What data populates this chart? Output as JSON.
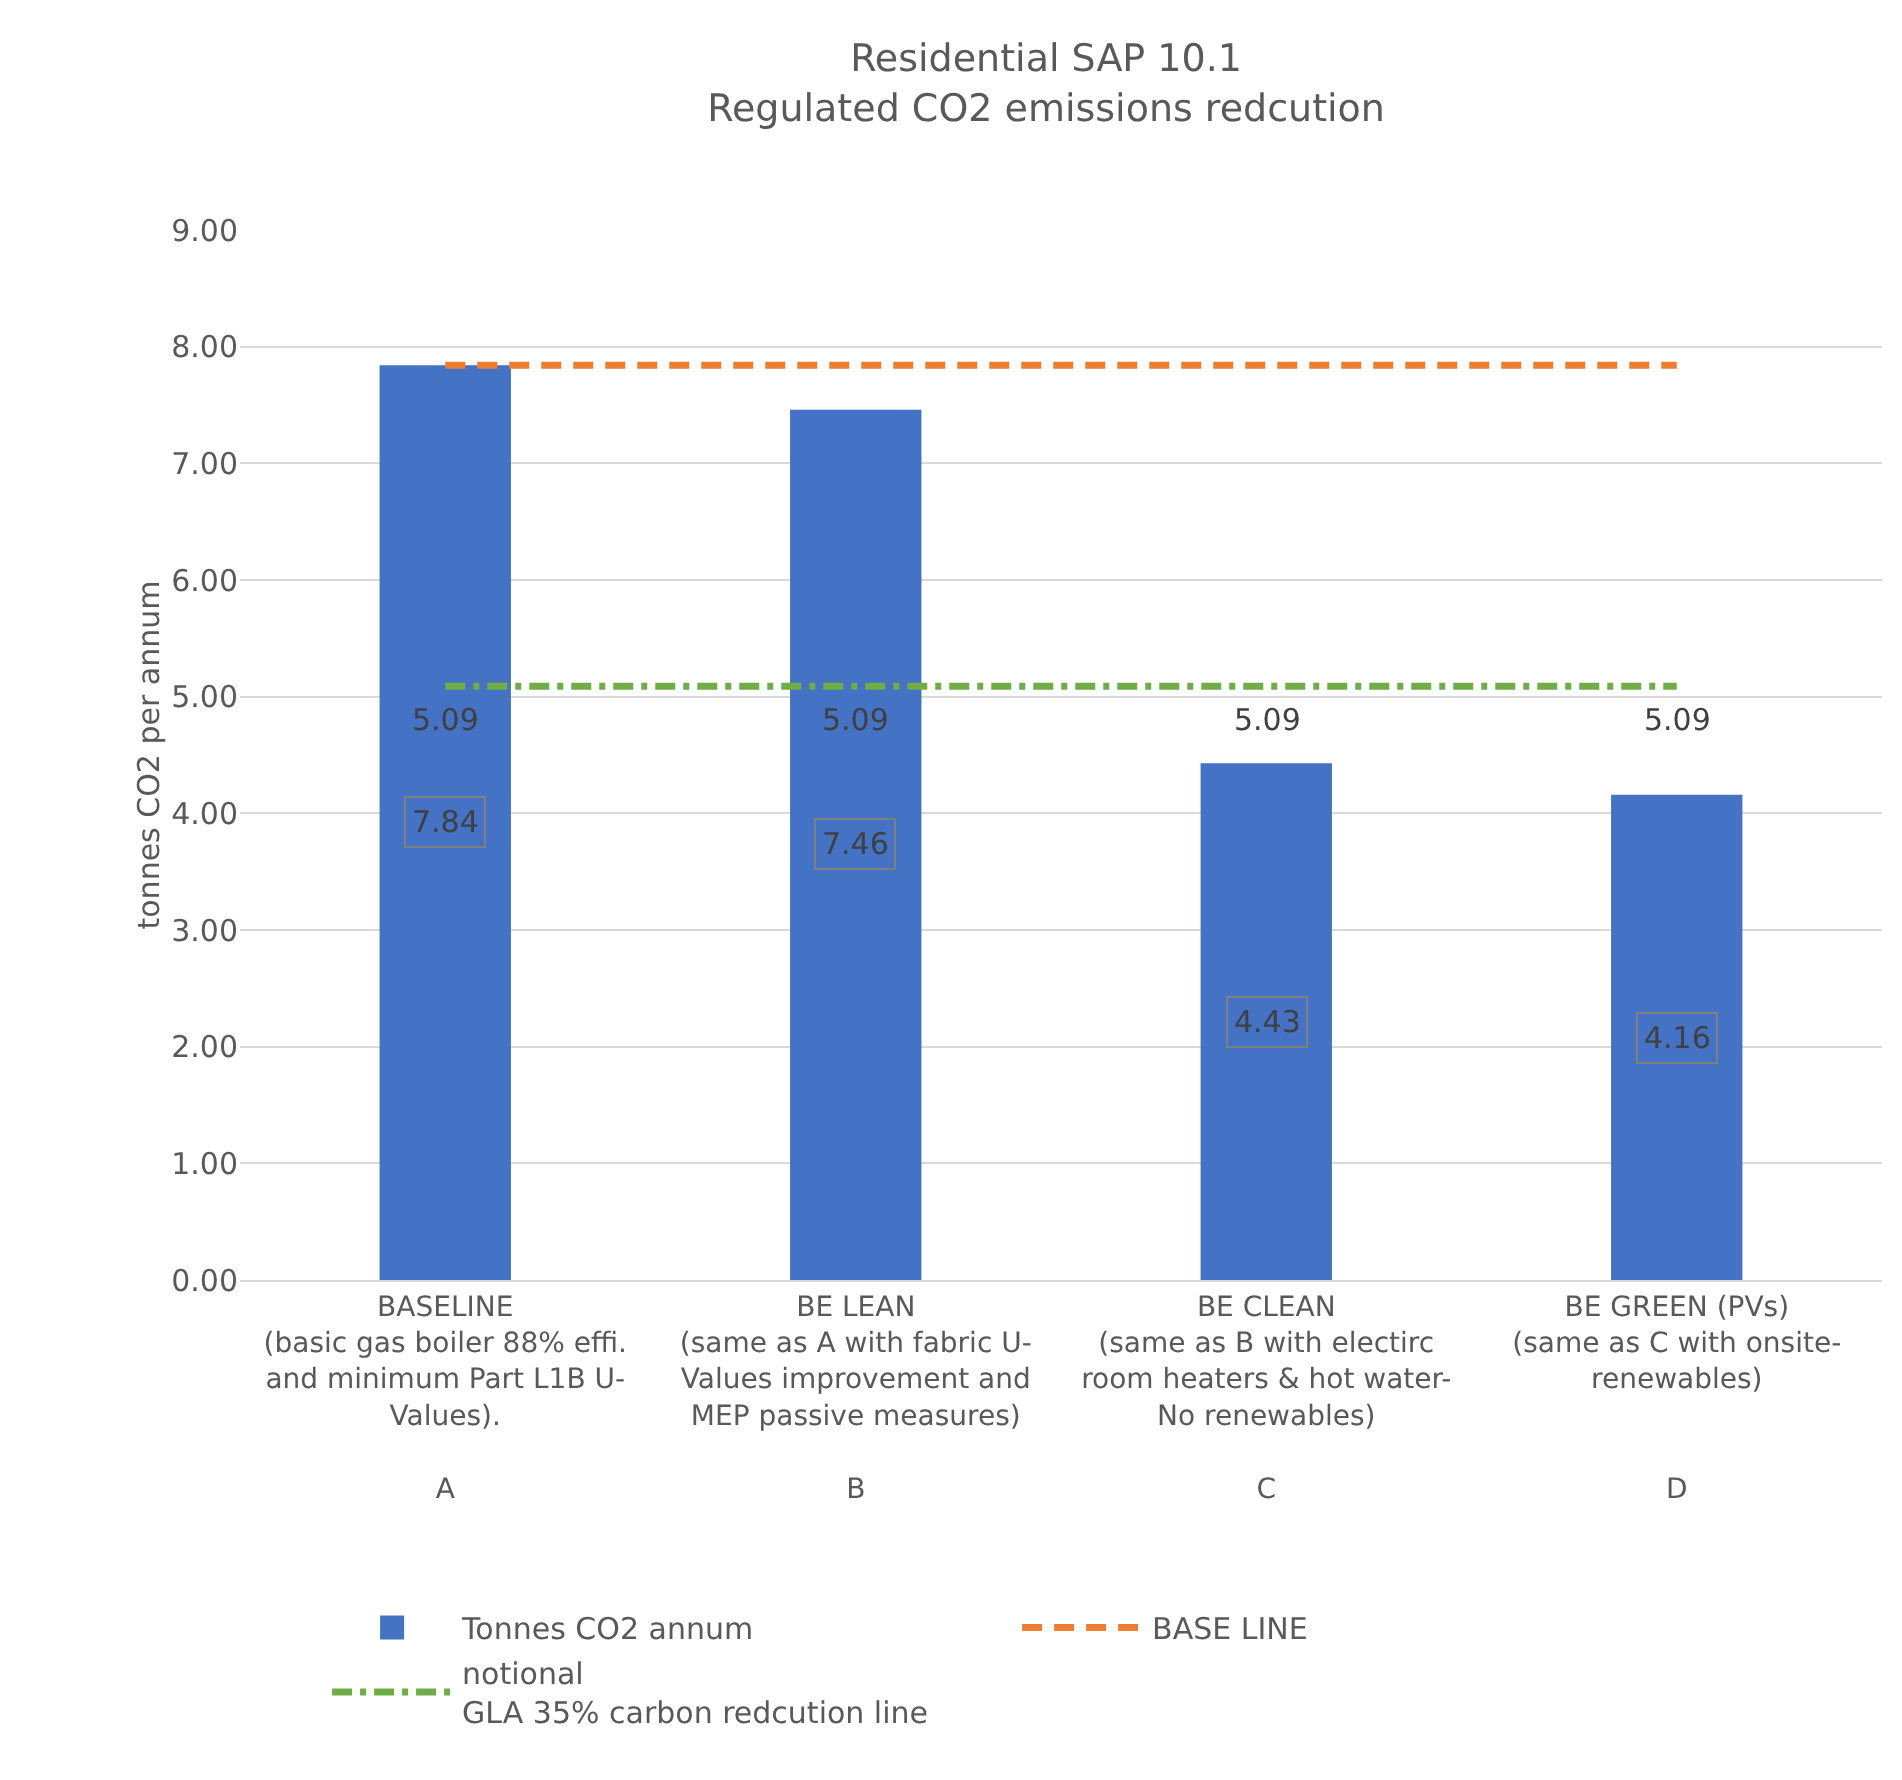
{
  "chart_data": {
    "type": "bar",
    "title": "Residential SAP 10.1\nRegulated CO2 emissions redcution",
    "ylabel": "tonnes CO2 per annum",
    "categories": [
      "BASELINE\n(basic gas boiler 88% effi.\nand minimum Part L1B U-\nValues).\n\nA",
      "BE LEAN\n(same as A with fabric U-\nValues improvement and\nMEP passive measures)\n\nB",
      "BE CLEAN\n(same as B with electirc\nroom heaters & hot water-\nNo renewables)\n\nC",
      "BE GREEN (PVs)\n(same as C with onsite-\nrenewables)\n\n\nD"
    ],
    "series": [
      {
        "name": "Tonnes CO2 annum",
        "color": "#4472c4",
        "values": [
          7.84,
          7.46,
          4.43,
          4.16
        ],
        "value_labels": [
          "7.84",
          "7.46",
          "4.43",
          "4.16"
        ]
      },
      {
        "name": "BASE LINE",
        "type": "line",
        "color": "#ed7d31",
        "line_style": "dashed",
        "values": [
          7.84,
          7.84,
          7.84,
          7.84
        ]
      },
      {
        "name": "notional\nGLA 35% carbon redcution line",
        "type": "line",
        "color": "#70ad47",
        "line_style": "dotted",
        "values": [
          5.09,
          5.09,
          5.09,
          5.09
        ],
        "value_labels": [
          "5.09",
          "5.09",
          "5.09",
          "5.09"
        ]
      }
    ],
    "ylim": [
      0,
      9
    ],
    "yticks": [
      {
        "value": 0,
        "label": "0.00"
      },
      {
        "value": 1,
        "label": "1.00"
      },
      {
        "value": 2,
        "label": "2.00"
      },
      {
        "value": 3,
        "label": "3.00"
      },
      {
        "value": 4,
        "label": "4.00"
      },
      {
        "value": 5,
        "label": "5.00"
      },
      {
        "value": 6,
        "label": "6.00"
      },
      {
        "value": 7,
        "label": "7.00"
      },
      {
        "value": 8,
        "label": "8.00"
      },
      {
        "value": 9,
        "label": "9.00"
      }
    ],
    "grid": "y",
    "legend": "bottom",
    "marker": "none"
  }
}
